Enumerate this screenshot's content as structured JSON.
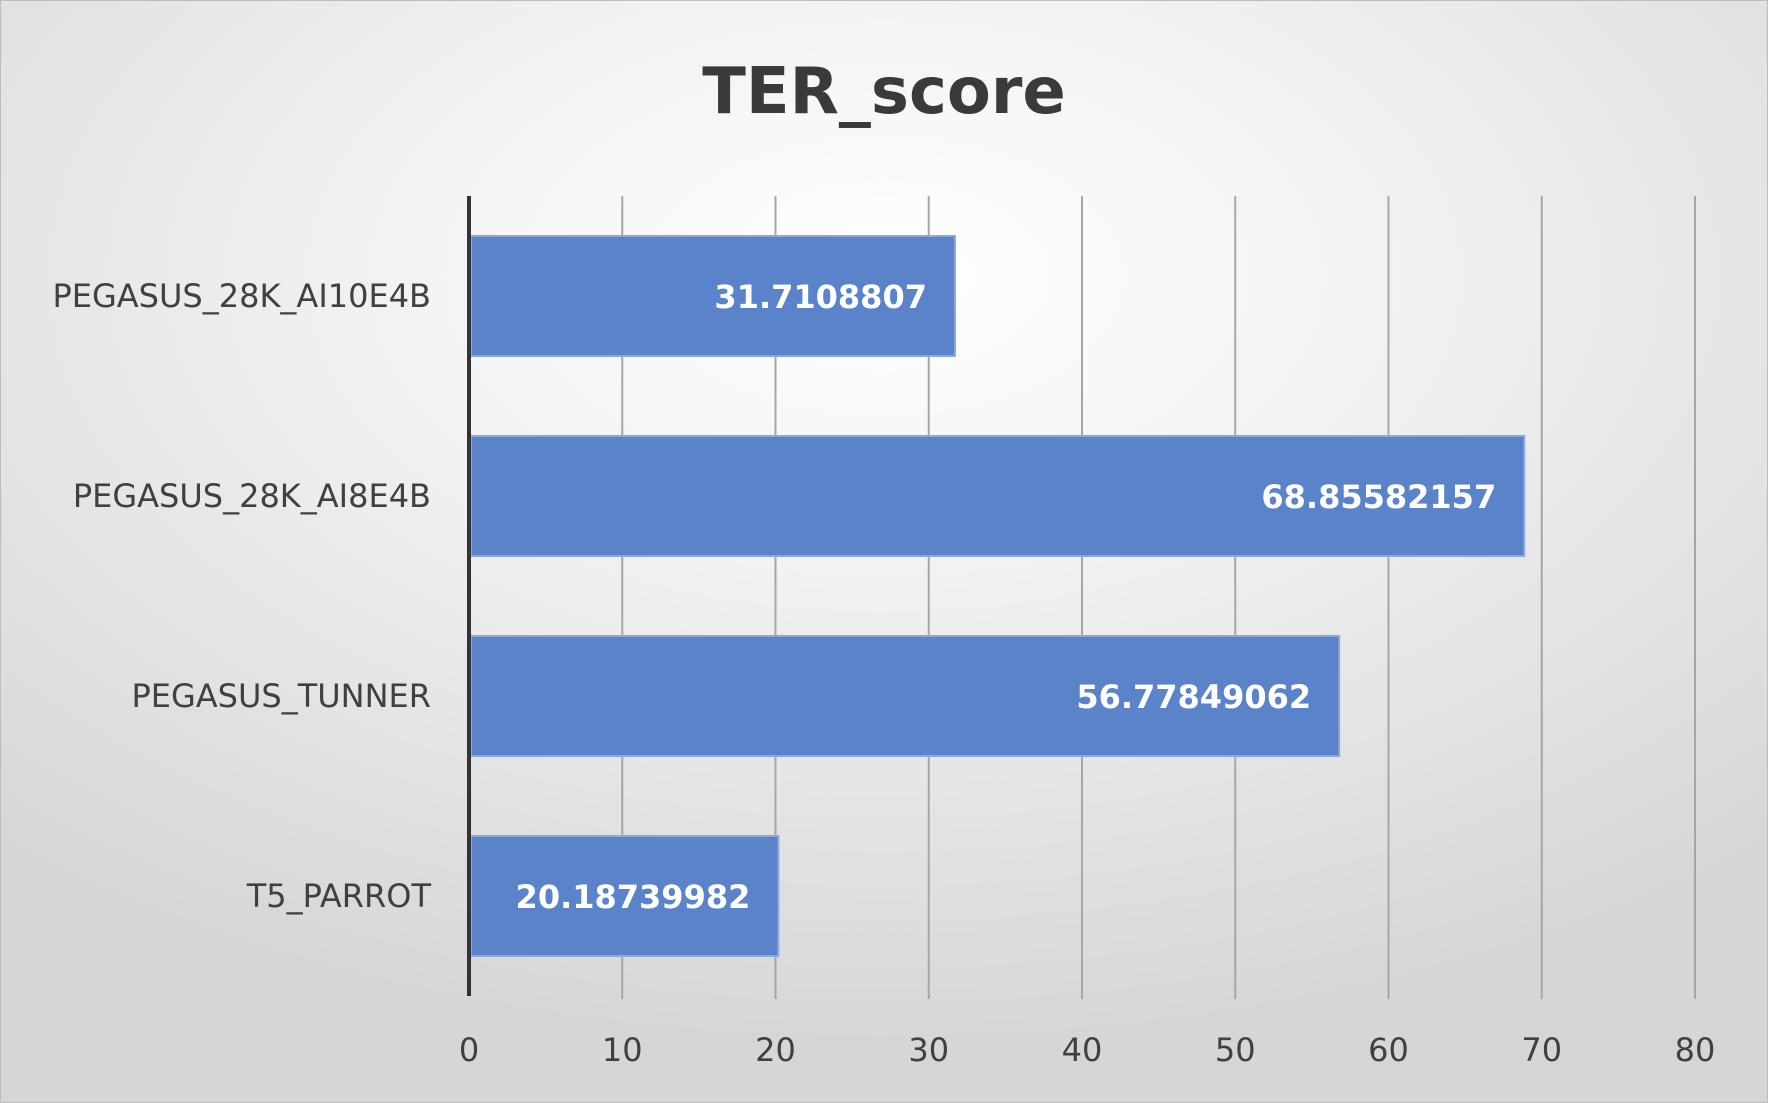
{
  "chart_data": {
    "type": "bar",
    "orientation": "horizontal",
    "title": "TER_score",
    "xlabel": "",
    "ylabel": "",
    "categories": [
      "PEGASUS_28K_AI10E4B",
      "PEGASUS_28K_AI8E4B",
      "PEGASUS_TUNNER",
      "T5_PARROT"
    ],
    "values": [
      31.7108807,
      68.85582157,
      56.77849062,
      20.18739982
    ],
    "value_labels": [
      "31.7108807",
      "68.85582157",
      "56.77849062",
      "20.18739982"
    ],
    "xlim": [
      0,
      80
    ],
    "xticks": [
      "0",
      "10",
      "20",
      "30",
      "40",
      "50",
      "60",
      "70",
      "80"
    ],
    "grid": "vertical",
    "legend": "none",
    "bar_color": "#5b83c9",
    "bar_edge_color": "#8aa8dc"
  }
}
